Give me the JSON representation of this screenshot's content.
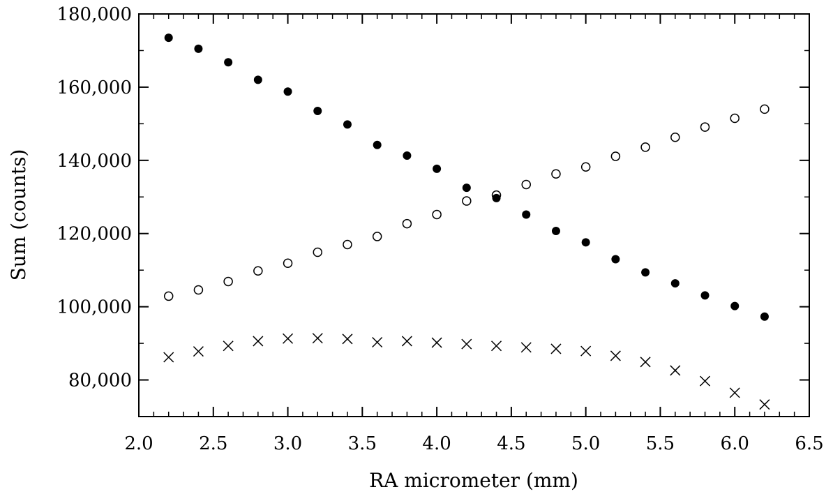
{
  "chart_data": {
    "type": "scatter",
    "title": "",
    "xlabel": "RA micrometer (mm)",
    "ylabel": "Sum (counts)",
    "xlim": [
      2.0,
      6.5
    ],
    "ylim": [
      70000,
      180000
    ],
    "x_ticks": [
      2.0,
      2.5,
      3.0,
      3.5,
      4.0,
      4.5,
      5.0,
      5.5,
      6.0,
      6.5
    ],
    "x_tick_labels": [
      "2.0",
      "2.5",
      "3.0",
      "3.5",
      "4.0",
      "4.5",
      "5.0",
      "5.5",
      "6.0",
      "6.5"
    ],
    "y_ticks": [
      80000,
      100000,
      120000,
      140000,
      160000,
      180000
    ],
    "y_tick_labels": [
      "80,000",
      "100,000",
      "120,000",
      "140,000",
      "160,000",
      "180,000"
    ],
    "grid": false,
    "legend": "none",
    "x": [
      2.2,
      2.4,
      2.6,
      2.8,
      3.0,
      3.2,
      3.4,
      3.6,
      3.8,
      4.0,
      4.2,
      4.4,
      4.6,
      4.8,
      5.0,
      5.2,
      5.4,
      5.6,
      5.8,
      6.0,
      6.2
    ],
    "series": [
      {
        "marker": "filled-circle",
        "values": [
          173500,
          170500,
          166800,
          162000,
          158800,
          153500,
          149800,
          144200,
          141300,
          137700,
          132500,
          129700,
          125200,
          120700,
          117600,
          113000,
          109400,
          106400,
          103100,
          100200,
          97300
        ]
      },
      {
        "marker": "open-circle",
        "values": [
          102900,
          104600,
          106900,
          109800,
          111900,
          114900,
          117000,
          119200,
          122700,
          125200,
          128900,
          130500,
          133400,
          136300,
          138200,
          141100,
          143600,
          146300,
          149100,
          151500,
          154000
        ]
      },
      {
        "marker": "cross",
        "values": [
          86200,
          87800,
          89300,
          90600,
          91300,
          91400,
          91200,
          90300,
          90600,
          90200,
          89800,
          89300,
          88900,
          88500,
          87900,
          86600,
          84900,
          82600,
          79700,
          76500,
          73300
        ]
      }
    ],
    "colors": {
      "axis": "#000000",
      "marker": "#000000"
    }
  }
}
